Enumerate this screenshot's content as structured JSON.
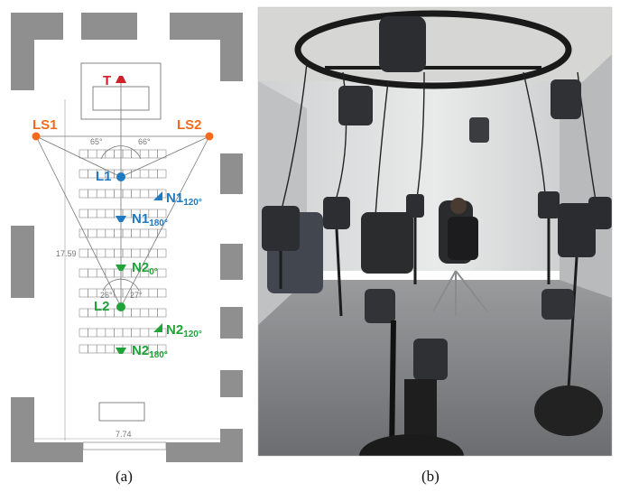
{
  "panel_a": {
    "caption": "(a)",
    "labels": {
      "teacher": "T",
      "ls1": "LS1",
      "ls2": "LS2",
      "l1": "L1",
      "l2": "L2",
      "n1_120": {
        "main": "N1",
        "sub": "120°"
      },
      "n1_180": {
        "main": "N1",
        "sub": "180°"
      },
      "n2_0": {
        "main": "N2",
        "sub": "0°"
      },
      "n2_120": {
        "main": "N2",
        "sub": "120°"
      },
      "n2_180": {
        "main": "N2",
        "sub": "180°"
      }
    },
    "angles": {
      "upper_left": "65°",
      "upper_right": "66°",
      "lower_left": "26°",
      "lower_right": "27°"
    },
    "dimensions": {
      "length": "17.59",
      "width": "7.74"
    },
    "colors": {
      "teacher": "#d0202a",
      "loudspeaker": "#f26b1d",
      "listener": "#1f7ac2",
      "noise1": "#1f7ac2",
      "noise2": "#22a33a"
    }
  },
  "panel_b": {
    "caption": "(b)",
    "description_icon": "loudspeaker-array-photo"
  }
}
